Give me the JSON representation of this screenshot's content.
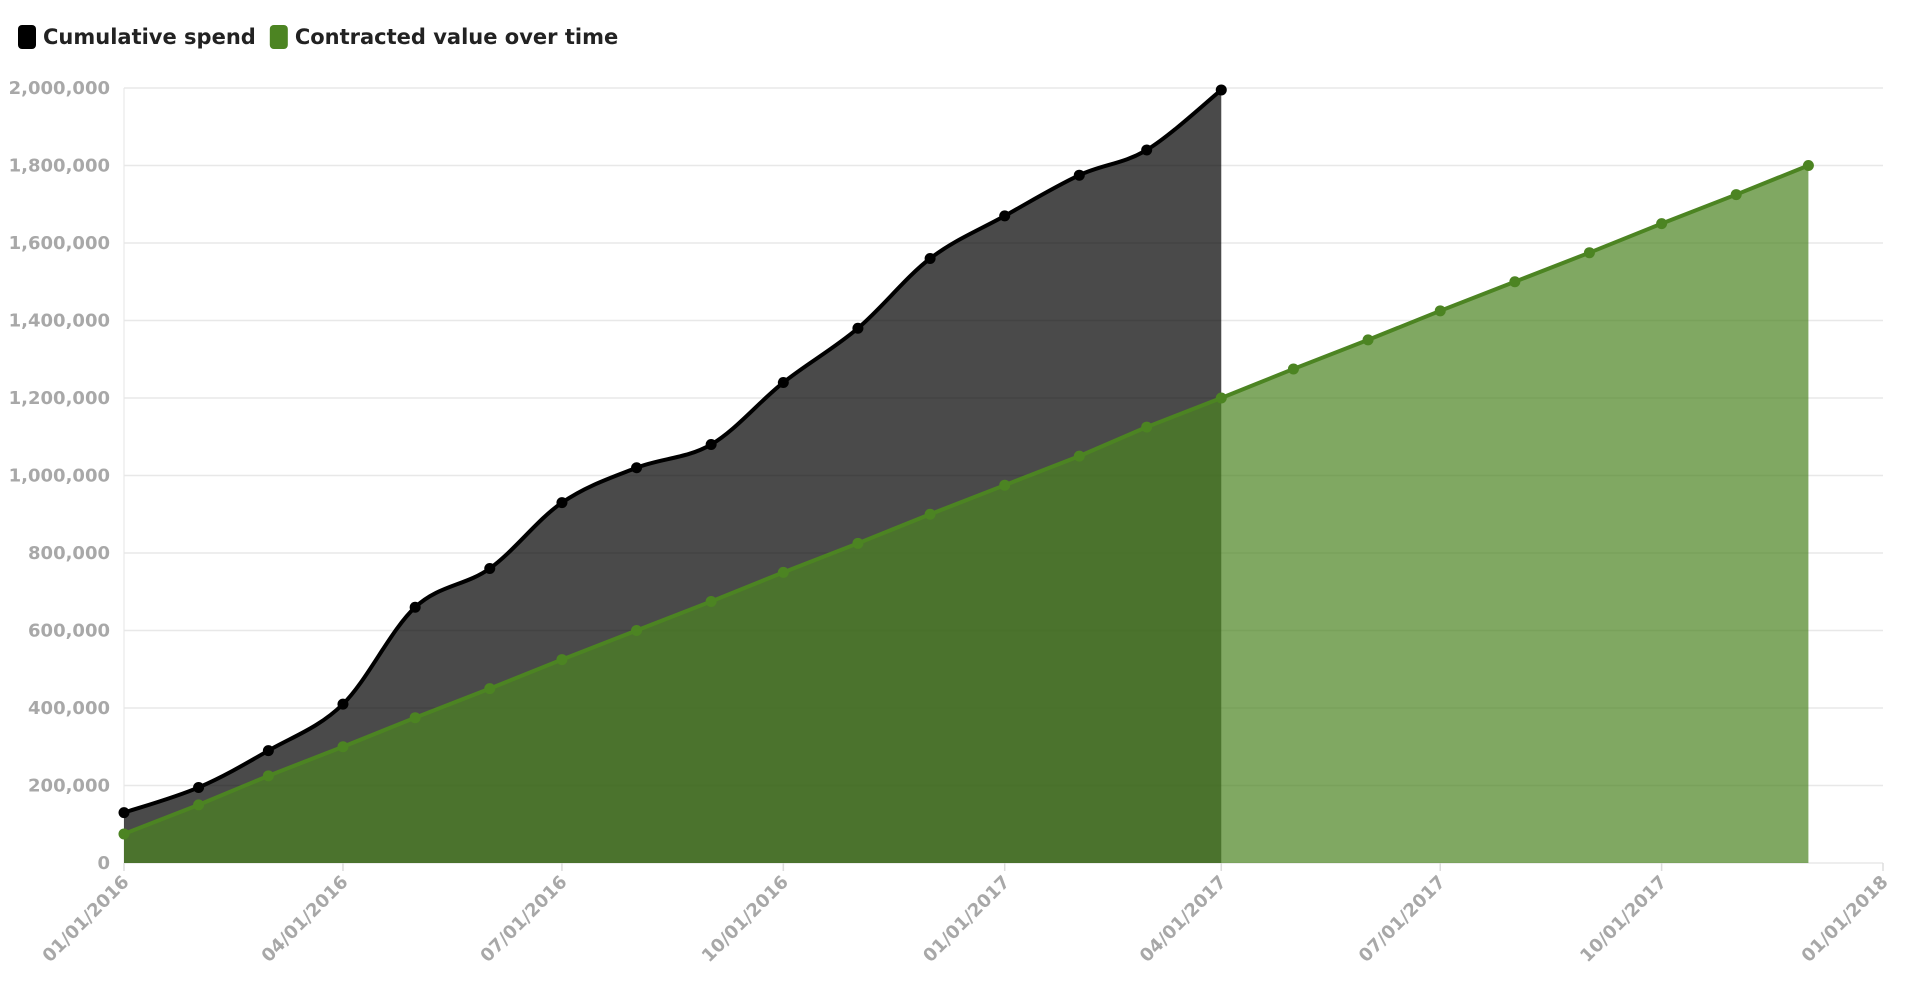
{
  "chart_data": {
    "type": "area",
    "x": [
      "01/01/2016",
      "02/01/2016",
      "03/01/2016",
      "04/01/2016",
      "05/01/2016",
      "06/01/2016",
      "07/01/2016",
      "08/01/2016",
      "09/01/2016",
      "10/01/2016",
      "11/01/2016",
      "12/01/2016",
      "01/01/2017",
      "02/01/2017",
      "03/01/2017",
      "04/01/2017",
      "05/01/2017",
      "06/01/2017",
      "07/01/2017",
      "08/01/2017",
      "09/01/2017",
      "10/01/2017",
      "11/01/2017",
      "12/01/2017"
    ],
    "series": [
      {
        "name": "Cumulative spend",
        "color": "#000000",
        "values": [
          130000,
          195000,
          290000,
          410000,
          660000,
          760000,
          930000,
          1020000,
          1080000,
          1240000,
          1380000,
          1560000,
          1670000,
          1775000,
          1840000,
          1995000,
          null,
          null,
          null,
          null,
          null,
          null,
          null,
          null
        ]
      },
      {
        "name": "Contracted value over time",
        "color": "#4c8422",
        "values": [
          75000,
          150000,
          225000,
          300000,
          375000,
          450000,
          525000,
          600000,
          675000,
          750000,
          825000,
          900000,
          975000,
          1050000,
          1125000,
          1200000,
          1275000,
          1350000,
          1425000,
          1500000,
          1575000,
          1650000,
          1725000,
          1800000
        ]
      }
    ],
    "xlim": [
      "01/01/2016",
      "01/01/2018"
    ],
    "xticks": [
      "01/01/2016",
      "04/01/2016",
      "07/01/2016",
      "10/01/2016",
      "01/01/2017",
      "04/01/2017",
      "07/01/2017",
      "10/01/2017",
      "01/01/2018"
    ],
    "ylim": [
      0,
      2000000
    ],
    "yticks": [
      0,
      {
        "value": 200000,
        "label": "200,000"
      },
      {
        "value": 400000,
        "label": "400,000"
      },
      {
        "value": 600000,
        "label": "600,000"
      },
      {
        "value": 800000,
        "label": "800,000"
      },
      {
        "value": 1000000,
        "label": "1,000,000"
      },
      {
        "value": 1200000,
        "label": "1,200,000"
      },
      {
        "value": 1400000,
        "label": "1,400,000"
      },
      {
        "value": 1600000,
        "label": "1,600,000"
      },
      {
        "value": 1800000,
        "label": "1,800,000"
      },
      {
        "value": 2000000,
        "label": "2,000,000"
      }
    ],
    "grid": true,
    "legend": "top-left"
  }
}
